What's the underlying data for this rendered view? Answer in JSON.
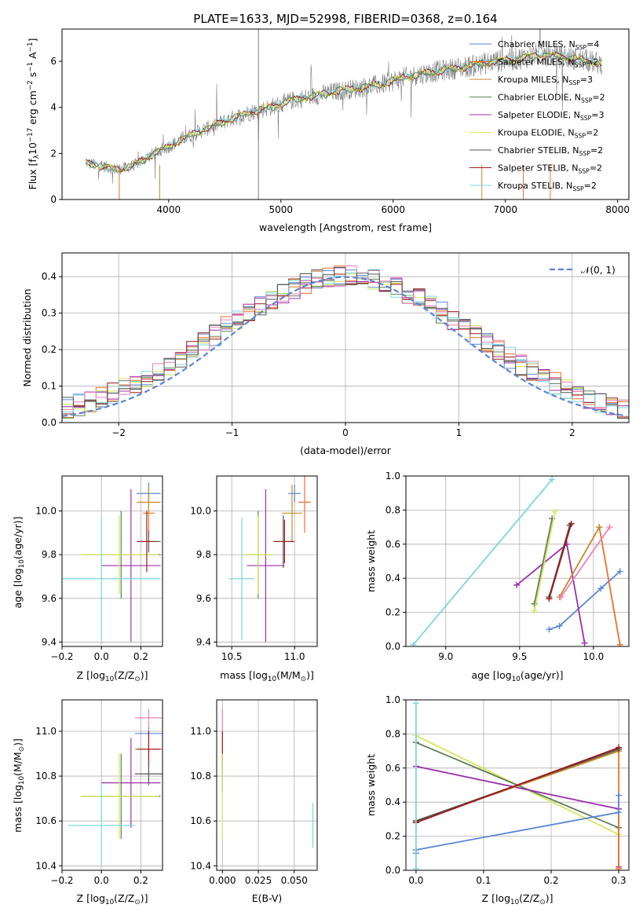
{
  "colors": {
    "Chabrier MILES": "#5b86d6",
    "Salpeter MILES": "#e8722a",
    "Kroupa MILES": "#c38b2b",
    "Chabrier ELODIE": "#5f7f5a",
    "Salpeter ELODIE": "#9931a8",
    "Kroupa ELODIE": "#d5e75b",
    "Chabrier STELIB": "#555555",
    "Salpeter STELIB": "#9a1a1a",
    "Kroupa STELIB": "#7dd6de",
    "data": "#7f7f7f",
    "normal": "#5b86d6",
    "hist_extra": "#ef7fb4",
    "light_green": "#8bc34a"
  },
  "chart_data": [
    {
      "id": "spectrum",
      "type": "line",
      "title": "PLATE=1633, MJD=52998, FIBERID=0368, z=0.164",
      "xlabel": "wavelength [Angstrom, rest frame]",
      "ylabel": "Flux [f",
      "ylabel_sub": "λ",
      "ylabel_rest": "10",
      "ylabel_exp1": "−17",
      "ylabel_mid": " erg cm",
      "ylabel_exp2": "−2",
      "ylabel_s": " s",
      "ylabel_exp3": "−1",
      "ylabel_end": " A",
      "ylabel_exp4": "−1",
      "ylabel_close": "]",
      "xlim": [
        3050,
        8100
      ],
      "ylim": [
        0,
        7.4
      ],
      "xticks": [
        4000,
        5000,
        6000,
        7000,
        8000
      ],
      "yticks": [
        0,
        2,
        4,
        6
      ],
      "continuum": {
        "x": [
          3260,
          3400,
          3550,
          3700,
          3850,
          4000,
          4150,
          4300,
          4500,
          4700,
          4900,
          5100,
          5300,
          5500,
          5700,
          5900,
          6100,
          6300,
          6500,
          6700,
          6900,
          7100,
          7300,
          7500,
          7700,
          7850
        ],
        "y": [
          1.6,
          1.45,
          1.3,
          1.5,
          1.95,
          2.3,
          2.7,
          3.0,
          3.4,
          3.75,
          4.0,
          4.3,
          4.5,
          4.7,
          4.85,
          5.0,
          5.3,
          5.5,
          5.65,
          5.8,
          6.0,
          6.1,
          6.3,
          6.2,
          6.05,
          5.9
        ]
      },
      "legend": [
        {
          "label": "Chabrier MILES, N",
          "sub": "SSP",
          "tail": "=4"
        },
        {
          "label": "Salpeter MILES, N",
          "sub": "SSP",
          "tail": "=2"
        },
        {
          "label": "Kroupa MILES, N",
          "sub": "SSP",
          "tail": "=3"
        },
        {
          "label": "Chabrier ELODIE, N",
          "sub": "SSP",
          "tail": "=2"
        },
        {
          "label": "Salpeter ELODIE, N",
          "sub": "SSP",
          "tail": "=3"
        },
        {
          "label": "Kroupa ELODIE, N",
          "sub": "SSP",
          "tail": "=2"
        },
        {
          "label": "Chabrier STELIB, N",
          "sub": "SSP",
          "tail": "=2"
        },
        {
          "label": "Salpeter STELIB, N",
          "sub": "SSP",
          "tail": "=2"
        },
        {
          "label": "Kroupa STELIB, N",
          "sub": "SSP",
          "tail": "=2"
        }
      ]
    },
    {
      "id": "residuals",
      "type": "bar",
      "xlabel": "(data-model)/error",
      "ylabel": "Normed distribution",
      "xlim": [
        -2.5,
        2.5
      ],
      "ylim": [
        0,
        0.465
      ],
      "xticks": [
        -2,
        -1,
        0,
        1,
        2
      ],
      "yticks": [
        0.0,
        0.1,
        0.2,
        0.3,
        0.4
      ],
      "legend": "𝒩(0, 1)",
      "bin_width": 0.1
    },
    {
      "id": "age_vs_z",
      "type": "scatter",
      "xlabel": "Z [log",
      "xlabel_sub": "10",
      "xlabel_rest": "(Z/Z",
      "xlabel_sun": "⊙",
      "xlabel_close": ")]",
      "ylabel": "age  [log",
      "ylabel_sub": "10",
      "ylabel_rest": "(age/yr)]",
      "xlim": [
        -0.2,
        0.31
      ],
      "ylim": [
        9.38,
        10.16
      ],
      "xticks": [
        -0.2,
        0.0,
        0.2
      ],
      "yticks": [
        9.4,
        9.6,
        9.8,
        10.0
      ],
      "points": [
        {
          "model": "Chabrier MILES",
          "x": 0.24,
          "y": 10.08,
          "xerr": 0.06,
          "yerr": 0.05
        },
        {
          "model": "Salpeter MILES",
          "x": 0.24,
          "y": 9.99,
          "xerr": 0.03,
          "yerr": 0.1
        },
        {
          "model": "Kroupa MILES",
          "x": 0.24,
          "y": 10.04,
          "xerr": 0.06,
          "yerr": 0.07
        },
        {
          "model": "Chabrier ELODIE",
          "x": 0.1,
          "y": 9.8,
          "xerr": 0.2,
          "yerr": 0.2
        },
        {
          "model": "Salpeter ELODIE",
          "x": 0.15,
          "y": 9.75,
          "xerr": 0.15,
          "yerr": 0.35
        },
        {
          "model": "Kroupa ELODIE",
          "x": 0.09,
          "y": 9.8,
          "xerr": 0.2,
          "yerr": 0.18
        },
        {
          "model": "Chabrier STELIB",
          "x": 0.24,
          "y": 9.86,
          "xerr": 0.06,
          "yerr": 0.05
        },
        {
          "model": "Salpeter STELIB",
          "x": 0.23,
          "y": 9.86,
          "xerr": 0.05,
          "yerr": 0.14
        },
        {
          "model": "Kroupa STELIB",
          "x": 0.0,
          "y": 9.69,
          "xerr": 0.3,
          "yerr": 0.28
        }
      ]
    },
    {
      "id": "age_vs_mass",
      "type": "scatter",
      "xlabel": "mass [log",
      "xlabel_sub": "10",
      "xlabel_rest": "(M/M",
      "xlabel_sun": "⊙",
      "xlabel_close": ")]",
      "xlim": [
        10.38,
        11.18
      ],
      "ylim": [
        9.38,
        10.16
      ],
      "xticks": [
        10.5,
        11.0
      ],
      "yticks": [
        9.4,
        9.6,
        9.8,
        10.0
      ],
      "points": [
        {
          "model": "Chabrier MILES",
          "x": 11.0,
          "y": 10.08,
          "xerr": 0.05,
          "yerr": 0.04
        },
        {
          "model": "Salpeter MILES",
          "x": 11.08,
          "y": 10.04,
          "xerr": 0.05,
          "yerr": 0.14
        },
        {
          "model": "Kroupa MILES",
          "x": 10.98,
          "y": 9.99,
          "xerr": 0.08,
          "yerr": 0.13
        },
        {
          "model": "Chabrier ELODIE",
          "x": 10.71,
          "y": 9.8,
          "xerr": 0.12,
          "yerr": 0.2
        },
        {
          "model": "Salpeter ELODIE",
          "x": 10.77,
          "y": 9.75,
          "xerr": 0.15,
          "yerr": 0.35
        },
        {
          "model": "Kroupa ELODIE",
          "x": 10.71,
          "y": 9.8,
          "xerr": 0.12,
          "yerr": 0.18
        },
        {
          "model": "Chabrier STELIB",
          "x": 10.91,
          "y": 9.86,
          "xerr": 0.08,
          "yerr": 0.12
        },
        {
          "model": "Salpeter STELIB",
          "x": 10.92,
          "y": 9.86,
          "xerr": 0.08,
          "yerr": 0.1
        },
        {
          "model": "Kroupa STELIB",
          "x": 10.58,
          "y": 9.69,
          "xerr": 0.1,
          "yerr": 0.28
        }
      ]
    },
    {
      "id": "weight_vs_age",
      "type": "line",
      "xlabel": "age  [log",
      "xlabel_sub": "10",
      "xlabel_rest": "(age/yr)]",
      "ylabel": "mass weight",
      "xlim": [
        8.73,
        10.24
      ],
      "ylim": [
        0,
        1
      ],
      "xticks": [
        9.0,
        9.5,
        10.0
      ],
      "yticks": [
        0.0,
        0.2,
        0.4,
        0.6,
        0.8,
        1.0
      ],
      "series": [
        {
          "model": "Kroupa STELIB",
          "x": [
            8.78,
            9.72
          ],
          "y": [
            0.01,
            0.98
          ]
        },
        {
          "model": "Chabrier MILES",
          "x": [
            9.7,
            9.77,
            10.05,
            10.18
          ],
          "y": [
            0.1,
            0.12,
            0.34,
            0.44
          ]
        },
        {
          "model": "Salpeter ELODIE",
          "x": [
            9.48,
            9.82,
            9.94
          ],
          "y": [
            0.36,
            0.6,
            0.02
          ]
        },
        {
          "model": "Salpeter MILES",
          "x": [
            10.04,
            10.18
          ],
          "y": [
            0.7,
            0.01
          ]
        },
        {
          "model": "Kroupa MILES",
          "x": [
            9.77,
            10.04
          ],
          "y": [
            0.29,
            0.7
          ]
        },
        {
          "model": "Chabrier ELODIE",
          "x": [
            9.6,
            9.72
          ],
          "y": [
            0.25,
            0.75
          ]
        },
        {
          "model": "Kroupa ELODIE",
          "x": [
            9.6,
            9.74
          ],
          "y": [
            0.21,
            0.79
          ]
        },
        {
          "model": "Chabrier STELIB",
          "x": [
            9.7,
            9.84
          ],
          "y": [
            0.29,
            0.71
          ]
        },
        {
          "model": "Salpeter STELIB",
          "x": [
            9.7,
            9.85
          ],
          "y": [
            0.28,
            0.72
          ]
        },
        {
          "model": "hist_extra",
          "x": [
            9.78,
            10.11
          ],
          "y": [
            0.29,
            0.7
          ]
        }
      ]
    },
    {
      "id": "mass_vs_z",
      "type": "scatter",
      "xlabel": "Z [log",
      "xlabel_sub": "10",
      "xlabel_rest": "(Z/Z",
      "xlabel_sun": "⊙",
      "xlabel_close": ")]",
      "ylabel": "mass [log",
      "ylabel_sub": "10",
      "ylabel_rest": "(M/M",
      "ylabel_sun": "⊙",
      "ylabel_close": ")]",
      "xlim": [
        -0.2,
        0.31
      ],
      "ylim": [
        10.38,
        11.14
      ],
      "xticks": [
        -0.2,
        0.0,
        0.2
      ],
      "yticks": [
        10.4,
        10.6,
        10.8,
        11.0
      ],
      "points": [
        {
          "model": "hist_extra",
          "x": 0.24,
          "y": 11.06,
          "xerr": 0.07,
          "yerr": 0.04
        },
        {
          "model": "Chabrier MILES",
          "x": 0.24,
          "y": 10.99,
          "xerr": 0.07,
          "yerr": 0.03
        },
        {
          "model": "Salpeter MILES",
          "x": 0.24,
          "y": 10.92,
          "xerr": 0.07,
          "yerr": 0.03
        },
        {
          "model": "Salpeter STELIB",
          "x": 0.24,
          "y": 10.92,
          "xerr": 0.06,
          "yerr": 0.08
        },
        {
          "model": "Chabrier STELIB",
          "x": 0.24,
          "y": 10.81,
          "xerr": 0.07,
          "yerr": 0.05
        },
        {
          "model": "Salpeter ELODIE",
          "x": 0.15,
          "y": 10.77,
          "xerr": 0.15,
          "yerr": 0.2
        },
        {
          "model": "Chabrier ELODIE",
          "x": 0.1,
          "y": 10.71,
          "xerr": 0.2,
          "yerr": 0.19
        },
        {
          "model": "Kroupa ELODIE",
          "x": 0.09,
          "y": 10.71,
          "xerr": 0.2,
          "yerr": 0.19
        },
        {
          "model": "Kroupa STELIB",
          "x": 0.0,
          "y": 10.58,
          "xerr": 0.17,
          "yerr": 0.18
        }
      ]
    },
    {
      "id": "mass_vs_ebv",
      "type": "scatter",
      "xlabel": "E(B-V)",
      "xlim": [
        -0.004,
        0.066
      ],
      "ylim": [
        10.38,
        11.14
      ],
      "xticks": [
        0.0,
        0.025,
        0.05
      ],
      "yticks": [
        10.4,
        10.6,
        10.8,
        11.0
      ],
      "points": [
        {
          "model": "hist_extra",
          "x": 0.0,
          "y": 11.0,
          "yerr": 0.1
        },
        {
          "model": "Salpeter STELIB",
          "x": 0.0,
          "y": 10.92,
          "yerr": 0.08
        },
        {
          "model": "Chabrier STELIB",
          "x": 0.0,
          "y": 10.81,
          "yerr": 0.08
        },
        {
          "model": "Kroupa ELODIE",
          "x": 0.0,
          "y": 10.71,
          "yerr": 0.19
        },
        {
          "model": "Kroupa STELIB",
          "x": 0.063,
          "y": 10.58,
          "yerr": 0.1
        }
      ]
    },
    {
      "id": "weight_vs_z",
      "type": "line",
      "xlabel": "Z [log",
      "xlabel_sub": "10",
      "xlabel_rest": "(Z/Z",
      "xlabel_sun": "⊙",
      "xlabel_close": ")]",
      "ylabel": "mass weight",
      "xlim": [
        -0.015,
        0.315
      ],
      "ylim": [
        0,
        1
      ],
      "xticks": [
        0.0,
        0.1,
        0.2,
        0.3
      ],
      "yticks": [
        0.0,
        0.2,
        0.4,
        0.6,
        0.8,
        1.0
      ],
      "series": [
        {
          "model": "Kroupa ELODIE",
          "x": [
            0.0,
            0.3
          ],
          "y": [
            0.79,
            0.21
          ]
        },
        {
          "model": "Chabrier ELODIE",
          "x": [
            0.0,
            0.3
          ],
          "y": [
            0.75,
            0.25
          ]
        },
        {
          "model": "Salpeter ELODIE",
          "x": [
            0.0,
            0.3,
            0.3
          ],
          "y": [
            0.61,
            0.36,
            0.02
          ]
        },
        {
          "model": "Salpeter MILES",
          "x": [
            0.0,
            0.3,
            0.3
          ],
          "y": [
            0.29,
            0.7,
            0.01
          ]
        },
        {
          "model": "Kroupa MILES",
          "x": [
            0.0,
            0.3
          ],
          "y": [
            0.29,
            0.7
          ]
        },
        {
          "model": "Chabrier STELIB",
          "x": [
            0.0,
            0.3
          ],
          "y": [
            0.29,
            0.71
          ]
        },
        {
          "model": "Salpeter STELIB",
          "x": [
            0.0,
            0.3
          ],
          "y": [
            0.28,
            0.72
          ]
        },
        {
          "model": "Chabrier MILES",
          "x": [
            0.0,
            0.0,
            0.3,
            0.3
          ],
          "y": [
            0.1,
            0.12,
            0.34,
            0.44
          ]
        },
        {
          "model": "Kroupa STELIB",
          "x": [
            0.0,
            0.0
          ],
          "y": [
            0.01,
            0.98
          ]
        }
      ]
    }
  ]
}
